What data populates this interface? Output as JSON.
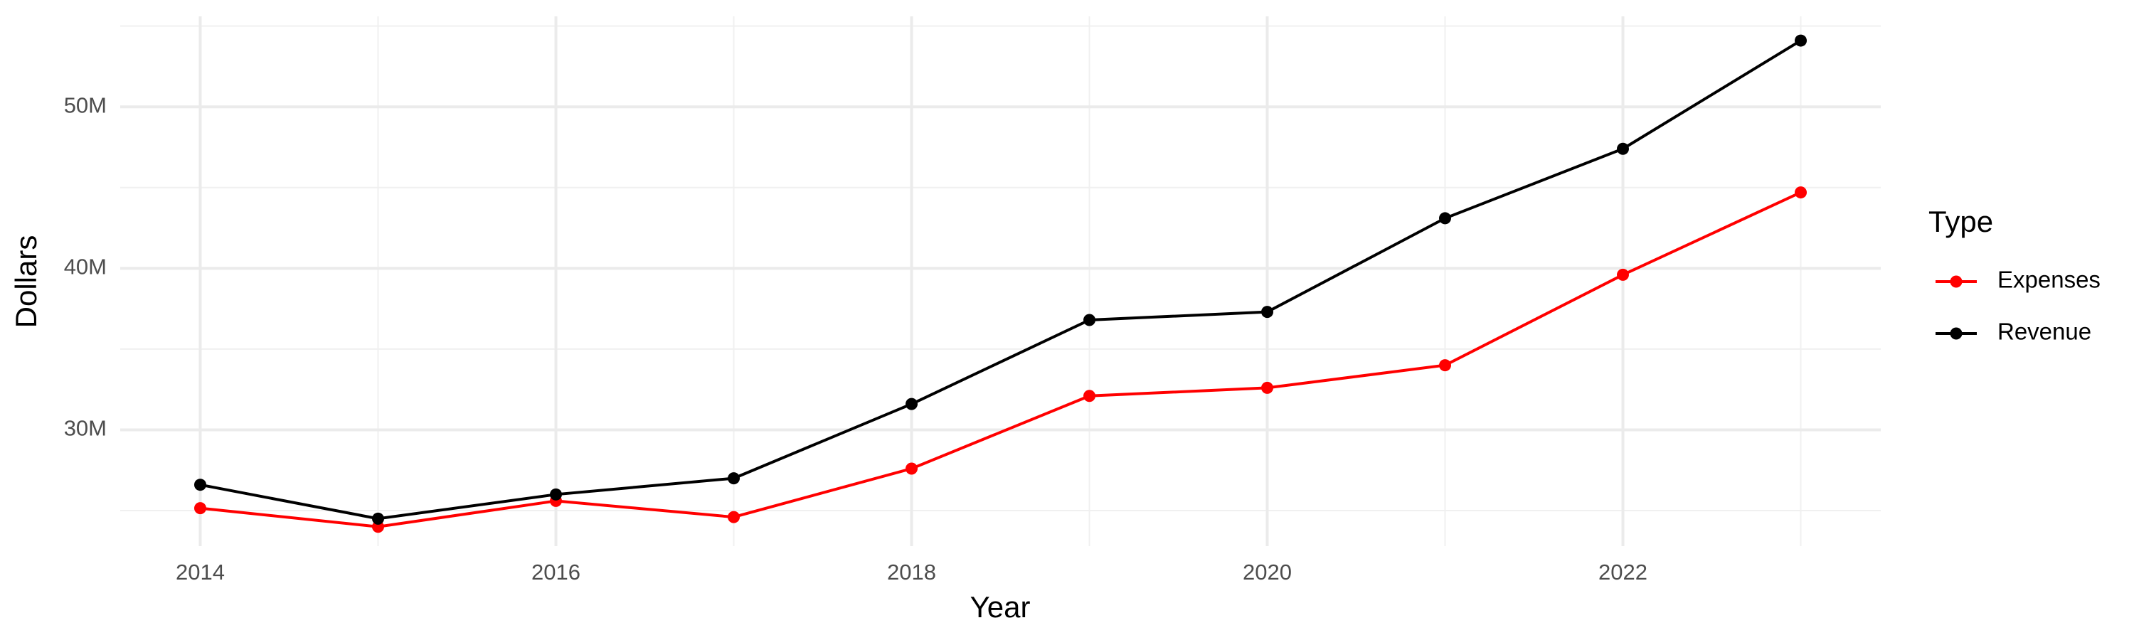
{
  "chart_data": {
    "type": "line",
    "x_label": "Year",
    "y_label": "Dollars",
    "x": [
      2014,
      2015,
      2016,
      2017,
      2018,
      2019,
      2020,
      2021,
      2022,
      2023
    ],
    "series": [
      {
        "name": "Expenses",
        "color": "#ff0000",
        "values": [
          25150000,
          24000000,
          25600000,
          24600000,
          27600000,
          32100000,
          32600000,
          34000000,
          39600000,
          44700000
        ]
      },
      {
        "name": "Revenue",
        "color": "#000000",
        "values": [
          26600000,
          24500000,
          26000000,
          27000000,
          31600000,
          36800000,
          37300000,
          43100000,
          47400000,
          54100000
        ]
      }
    ],
    "xlim": [
      2013.55,
      2023.45
    ],
    "xticks": [
      2014,
      2016,
      2018,
      2020,
      2022
    ],
    "ylim": [
      22800000,
      55600000
    ],
    "yticks": [
      {
        "value": 30000000,
        "label": "30M"
      },
      {
        "value": 40000000,
        "label": "40M"
      },
      {
        "value": 50000000,
        "label": "50M"
      }
    ],
    "grid": true,
    "legend_title": "Type",
    "legend_position": "right"
  }
}
